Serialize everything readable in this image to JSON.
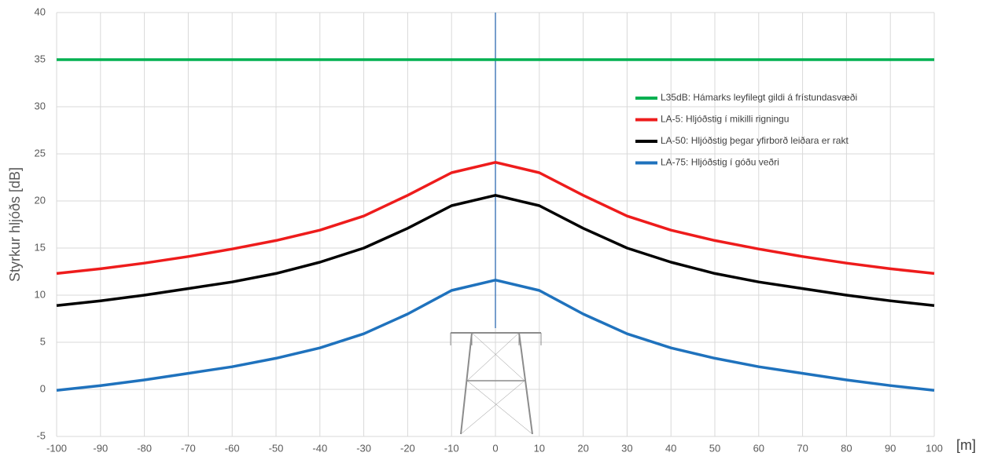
{
  "chart_data": {
    "type": "line",
    "y_label": "Styrkur hljóðs [dB]",
    "x_label": "[m]",
    "x": [
      -100,
      -90,
      -80,
      -70,
      -60,
      -50,
      -40,
      -30,
      -20,
      -10,
      0,
      10,
      20,
      30,
      40,
      50,
      60,
      70,
      80,
      90,
      100
    ],
    "series": [
      {
        "name": "L35dB: Hámarks leyfilegt gildi  á frístundasvæði",
        "color": "#00b050",
        "values": [
          35,
          35,
          35,
          35,
          35,
          35,
          35,
          35,
          35,
          35,
          35,
          35,
          35,
          35,
          35,
          35,
          35,
          35,
          35,
          35,
          35
        ]
      },
      {
        "name": "LA-5: Hljóðstig í mikilli rigningu",
        "color": "#ee1c1c",
        "values": [
          12.3,
          12.8,
          13.4,
          14.1,
          14.9,
          15.8,
          16.9,
          18.4,
          20.6,
          23.0,
          24.1,
          23.0,
          20.6,
          18.4,
          16.9,
          15.8,
          14.9,
          14.1,
          13.4,
          12.8,
          12.3
        ]
      },
      {
        "name": "LA-50: Hljóðstig þegar yfirborð leiðara er rakt",
        "color": "#000000",
        "values": [
          8.9,
          9.4,
          10.0,
          10.7,
          11.4,
          12.3,
          13.5,
          15.0,
          17.1,
          19.5,
          20.6,
          19.5,
          17.1,
          15.0,
          13.5,
          12.3,
          11.4,
          10.7,
          10.0,
          9.4,
          8.9
        ]
      },
      {
        "name": "LA-75: Hljóðstig í góðu veðri",
        "color": "#1f72bd",
        "values": [
          -0.1,
          0.4,
          1.0,
          1.7,
          2.4,
          3.3,
          4.4,
          5.9,
          8.0,
          10.5,
          11.6,
          10.5,
          8.0,
          5.9,
          4.4,
          3.3,
          2.4,
          1.7,
          1.0,
          0.4,
          -0.1
        ]
      }
    ],
    "xlim": [
      -100,
      100
    ],
    "xticks": [
      -100,
      -90,
      -80,
      -70,
      -60,
      -50,
      -40,
      -30,
      -20,
      -10,
      0,
      10,
      20,
      30,
      40,
      50,
      60,
      70,
      80,
      90,
      100
    ],
    "ylim": [
      -5,
      40
    ],
    "yticks": [
      -5,
      0,
      5,
      10,
      15,
      20,
      25,
      30,
      35,
      40
    ],
    "grid": true
  }
}
